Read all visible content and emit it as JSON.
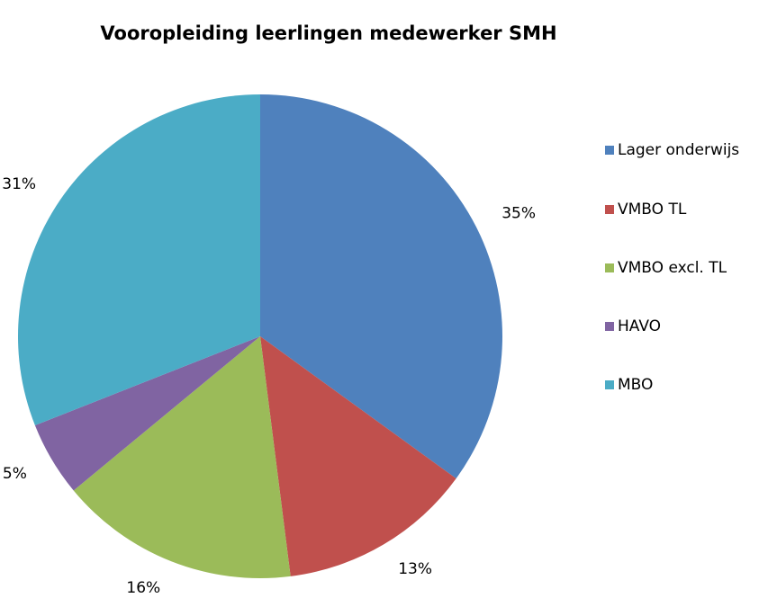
{
  "chart_data": {
    "type": "pie",
    "title": "Vooropleiding leerlingen medewerker SMH",
    "categories": [
      "Lager onderwijs",
      "VMBO TL",
      "VMBO excl. TL",
      "HAVO",
      "MBO"
    ],
    "values": [
      35,
      13,
      16,
      5,
      31
    ],
    "value_labels": [
      "35%",
      "13%",
      "16%",
      "5%",
      "31%"
    ],
    "colors": [
      "#4f81bd",
      "#c0504d",
      "#9bbb59",
      "#8064a2",
      "#4bacc6"
    ],
    "legend": "right"
  }
}
